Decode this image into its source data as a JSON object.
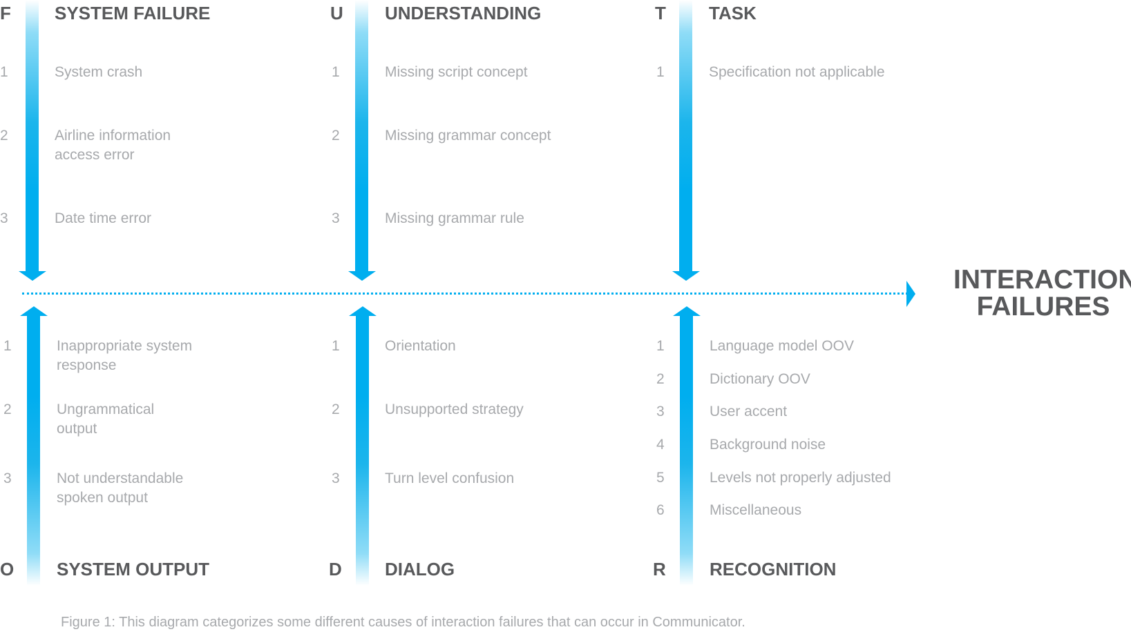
{
  "accent_color": "#00AEEF",
  "outcome": {
    "line1": "INTERACTION",
    "line2": "FAILURES"
  },
  "top_categories": [
    {
      "letter": "F",
      "title": "SYSTEM FAILURE",
      "items": [
        {
          "num": "1",
          "lines": [
            "System crash"
          ]
        },
        {
          "num": "2",
          "lines": [
            "Airline information",
            "access error"
          ]
        },
        {
          "num": "3",
          "lines": [
            "Date time error"
          ]
        }
      ]
    },
    {
      "letter": "U",
      "title": "UNDERSTANDING",
      "items": [
        {
          "num": "1",
          "lines": [
            "Missing script concept"
          ]
        },
        {
          "num": "2",
          "lines": [
            "Missing grammar concept"
          ]
        },
        {
          "num": "3",
          "lines": [
            "Missing grammar rule"
          ]
        }
      ]
    },
    {
      "letter": "T",
      "title": "TASK",
      "items": [
        {
          "num": "1",
          "lines": [
            "Specification not applicable"
          ]
        }
      ]
    }
  ],
  "bottom_categories": [
    {
      "letter": "O",
      "title": "SYSTEM OUTPUT",
      "items": [
        {
          "num": "1",
          "lines": [
            "Inappropriate system",
            "response"
          ]
        },
        {
          "num": "2",
          "lines": [
            "Ungrammatical",
            "output"
          ]
        },
        {
          "num": "3",
          "lines": [
            "Not understandable",
            "spoken output"
          ]
        }
      ]
    },
    {
      "letter": "D",
      "title": "DIALOG",
      "items": [
        {
          "num": "1",
          "lines": [
            "Orientation"
          ]
        },
        {
          "num": "2",
          "lines": [
            "Unsupported strategy"
          ]
        },
        {
          "num": "3",
          "lines": [
            "Turn level confusion"
          ]
        }
      ]
    },
    {
      "letter": "R",
      "title": "RECOGNITION",
      "items": [
        {
          "num": "1",
          "lines": [
            "Language model OOV"
          ]
        },
        {
          "num": "2",
          "lines": [
            "Dictionary OOV"
          ]
        },
        {
          "num": "3",
          "lines": [
            "User accent"
          ]
        },
        {
          "num": "4",
          "lines": [
            "Background noise"
          ]
        },
        {
          "num": "5",
          "lines": [
            "Levels not properly adjusted"
          ]
        },
        {
          "num": "6",
          "lines": [
            "Miscellaneous"
          ]
        }
      ]
    }
  ],
  "caption": "Figure 1: This diagram categorizes some different causes of interaction failures that can occur in Communicator."
}
